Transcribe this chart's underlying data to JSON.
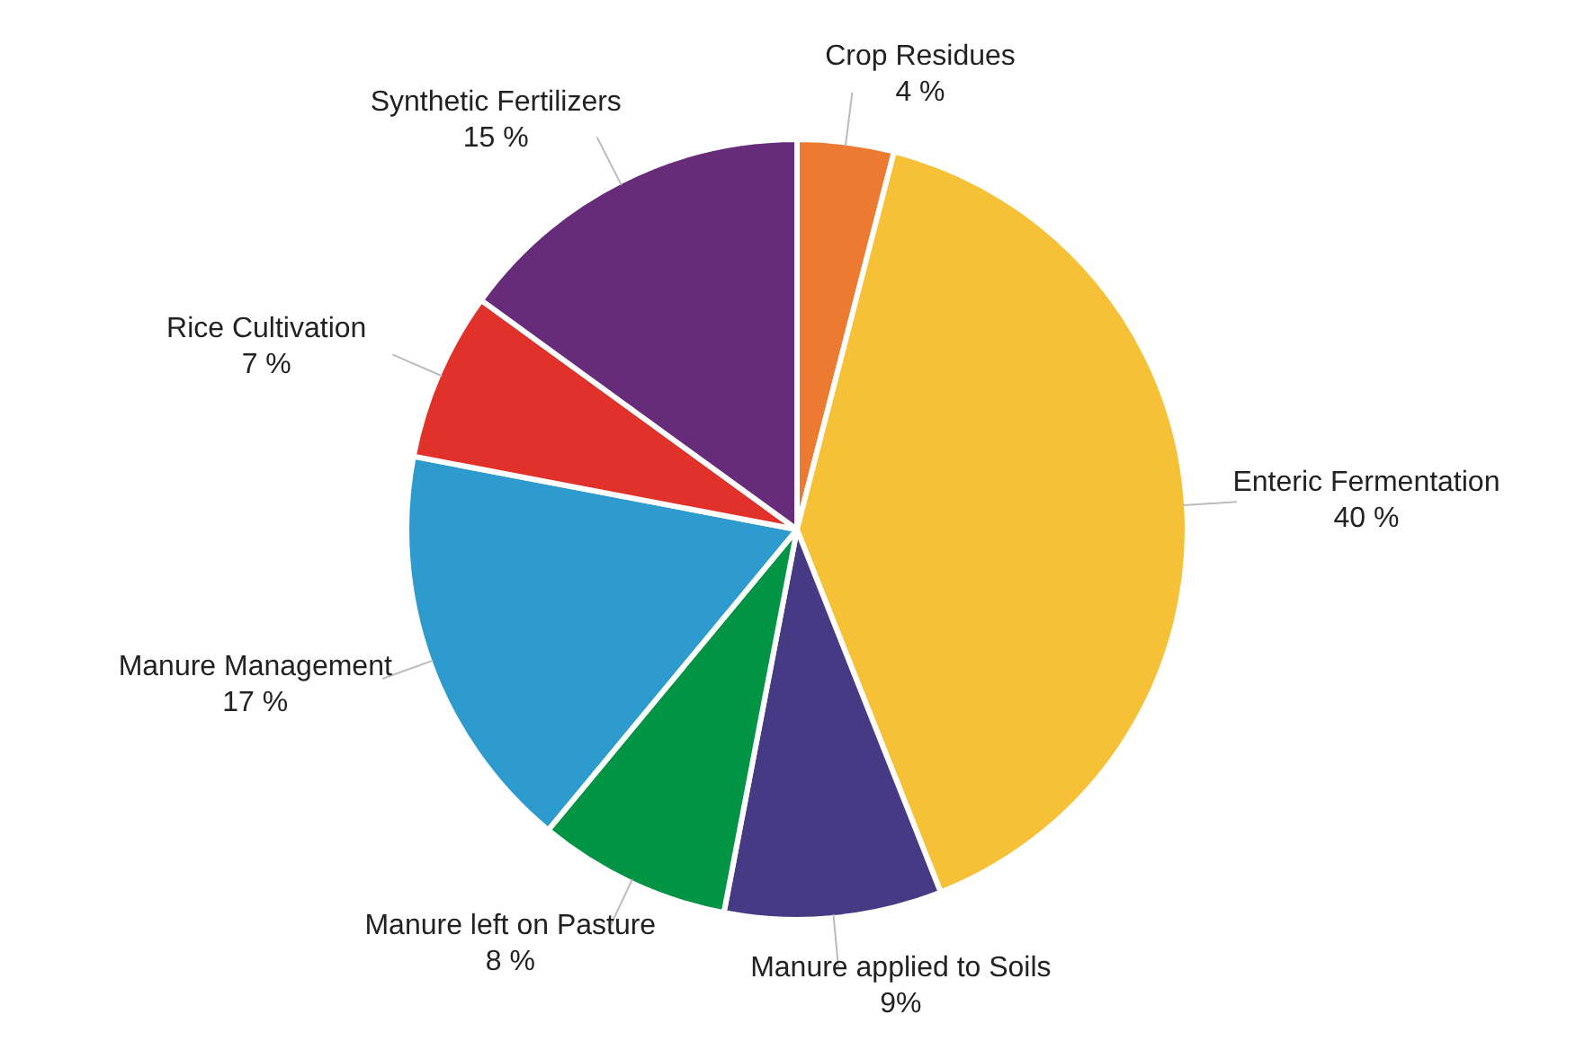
{
  "chart_data": {
    "type": "pie",
    "categories": [
      "Crop Residues",
      "Enteric Fermentation",
      "Manure applied to Soils",
      "Manure left on Pasture",
      "Manure Management",
      "Rice Cultivation",
      "Synthetic Fertilizers"
    ],
    "values": [
      4,
      40,
      9,
      8,
      17,
      7,
      15
    ],
    "colors": [
      "#ec7a30",
      "#f6c137",
      "#473a85",
      "#009444",
      "#2e9bcf",
      "#e0322a",
      "#662b79"
    ],
    "value_labels": [
      "4 %",
      "40 %",
      "9%",
      "8 %",
      "17 %",
      "7 %",
      "15 %"
    ]
  }
}
